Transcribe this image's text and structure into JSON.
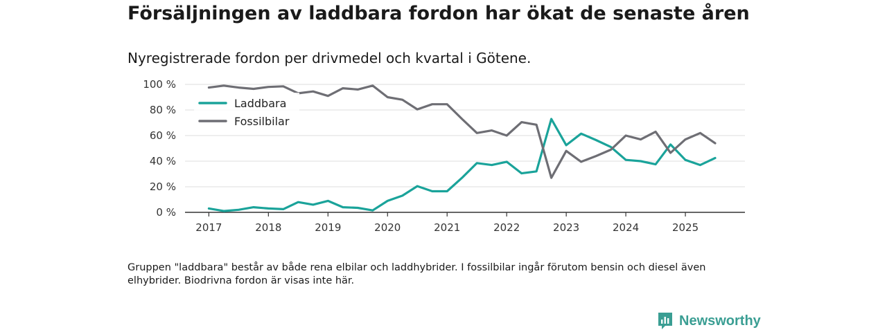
{
  "header": {
    "title": "Försäljningen av laddbara fordon har ökat de senaste åren",
    "subtitle": "Nyregistrerade fordon per drivmedel och kvartal i Götene."
  },
  "footer": {
    "note": "Gruppen \"laddbara\" består av både rena elbilar och laddhybrider. I fossilbilar ingår förutom bensin och diesel även elhybrider. Biodrivna fordon är visas inte här.",
    "brand": "Newsworthy"
  },
  "colors": {
    "laddbara": "#1aa39a",
    "fossil": "#6e6e74",
    "grid": "#dddddd",
    "axis": "#333333"
  },
  "chart_data": {
    "type": "line",
    "title": "Nyregistrerade fordon per drivmedel och kvartal i Götene.",
    "xlabel": "",
    "ylabel": "",
    "x_range": [
      2016.6,
      2026.0
    ],
    "ylim": [
      0,
      100
    ],
    "grid": true,
    "legend_position": "top-left",
    "yticks": [
      0,
      20,
      40,
      60,
      80,
      100
    ],
    "ytick_labels": [
      "0 %",
      "20 %",
      "40 %",
      "60 %",
      "80 %",
      "100 %"
    ],
    "xticks": [
      2017,
      2018,
      2019,
      2020,
      2021,
      2022,
      2023,
      2024,
      2025
    ],
    "xtick_labels": [
      "2017",
      "2018",
      "2019",
      "2020",
      "2021",
      "2022",
      "2023",
      "2024",
      "2025"
    ],
    "x": [
      2017.0,
      2017.25,
      2017.5,
      2017.75,
      2018.0,
      2018.25,
      2018.5,
      2018.75,
      2019.0,
      2019.25,
      2019.5,
      2019.75,
      2020.0,
      2020.25,
      2020.5,
      2020.75,
      2021.0,
      2021.25,
      2021.5,
      2021.75,
      2022.0,
      2022.25,
      2022.5,
      2022.75,
      2023.0,
      2023.25,
      2023.5,
      2023.75,
      2024.0,
      2024.25,
      2024.5,
      2024.75,
      2025.0,
      2025.25,
      2025.5
    ],
    "series": [
      {
        "name": "Laddbara",
        "color_key": "laddbara",
        "values": [
          3,
          1,
          2,
          4,
          3,
          2.5,
          8,
          6,
          9,
          4,
          3.5,
          1.5,
          9,
          13,
          20.5,
          16.5,
          16.5,
          27,
          38.5,
          37,
          39.5,
          30.5,
          32,
          73,
          52.5,
          61.5,
          56.5,
          51,
          41,
          40,
          37.5,
          53,
          41,
          37,
          42.5
        ]
      },
      {
        "name": "Fossilbilar",
        "color_key": "fossil",
        "values": [
          97.5,
          99,
          97.5,
          96.5,
          98,
          98.5,
          93,
          94.5,
          91,
          97,
          96,
          99,
          90,
          88,
          80.5,
          84.5,
          84.5,
          73,
          62,
          64,
          60,
          70.5,
          68.5,
          27,
          48,
          39.5,
          44,
          49,
          60,
          57,
          63,
          46.5,
          57,
          62,
          54
        ]
      }
    ]
  }
}
